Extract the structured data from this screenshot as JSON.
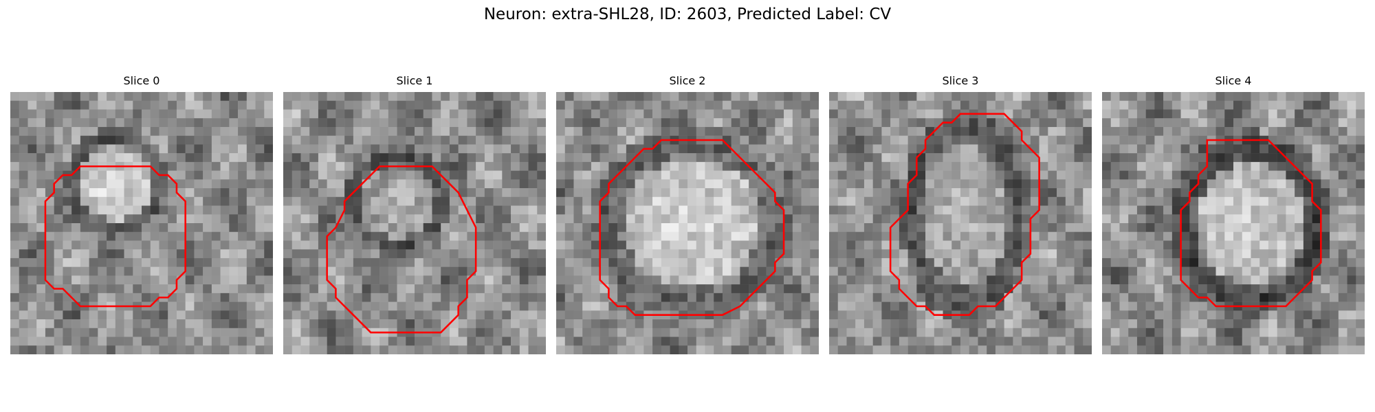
{
  "figure": {
    "title": "Neuron: extra-SHL28, ID: 2603, Predicted Label: CV",
    "contour_color": "#ff0000",
    "colormap": "gray"
  },
  "panels": [
    {
      "label": "Slice 0"
    },
    {
      "label": "Slice 1"
    },
    {
      "label": "Slice 2"
    },
    {
      "label": "Slice 3"
    },
    {
      "label": "Slice 4"
    }
  ]
}
